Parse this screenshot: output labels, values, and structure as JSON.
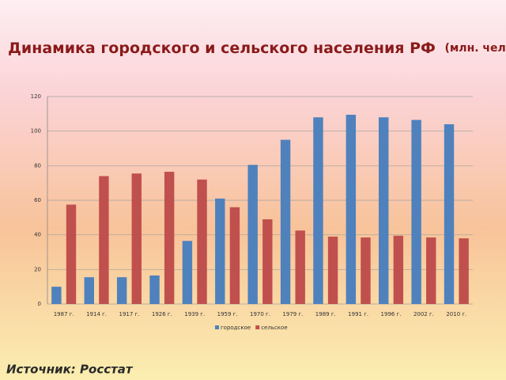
{
  "chart_data": {
    "type": "bar",
    "title": "Динамика городского и сельского населения РФ",
    "title_unit": "(млн. чел.)",
    "source": "Источник: Росстат",
    "categories": [
      "1987 г.",
      "1914 г.",
      "1917 г.",
      "1926 г.",
      "1939 г.",
      "1959 г.",
      "1970 г.",
      "1979 г.",
      "1989 г.",
      "1991 г.",
      "1996 г.",
      "2002 г.",
      "2010 г."
    ],
    "series": [
      {
        "name": "городское",
        "color": "#4f81bd",
        "values": [
          10,
          15.5,
          15.5,
          16.5,
          36.5,
          61,
          80.5,
          95,
          108,
          109.5,
          108,
          106.5,
          104
        ]
      },
      {
        "name": "сельское",
        "color": "#c0504d",
        "values": [
          57.5,
          74,
          75.5,
          76.5,
          72,
          56,
          49,
          42.5,
          39,
          38.5,
          39.5,
          38.5,
          38
        ]
      }
    ],
    "ylim": [
      0,
      120
    ],
    "yticks": [
      0,
      20,
      40,
      60,
      80,
      100,
      120
    ],
    "grid": true,
    "legend": "bottom"
  }
}
